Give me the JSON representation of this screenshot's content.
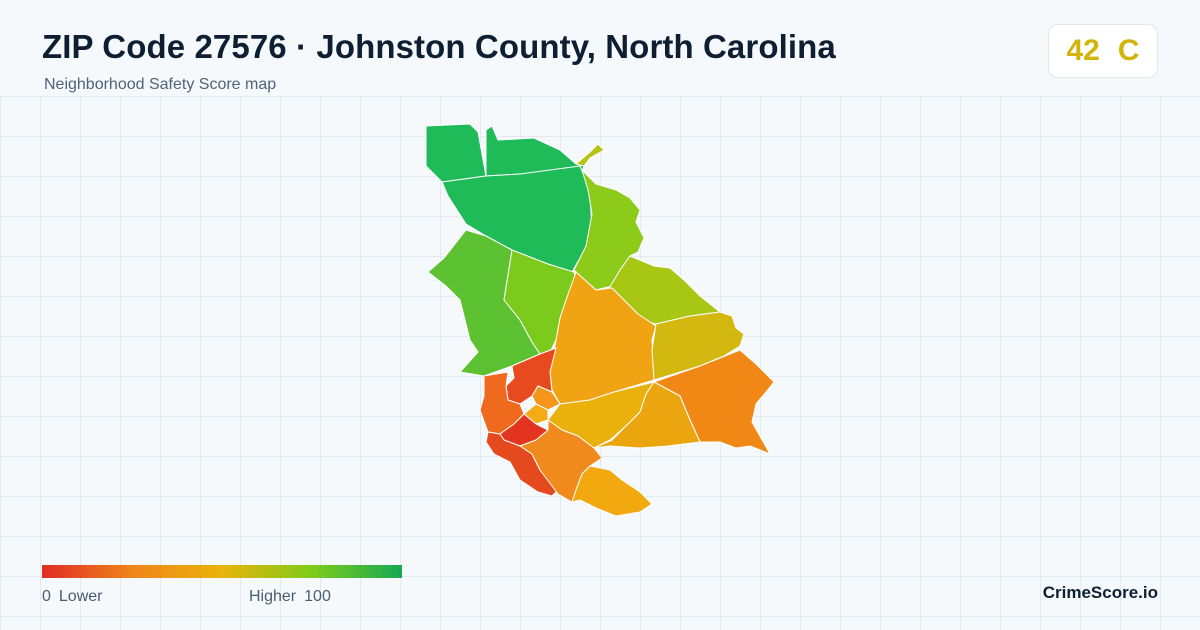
{
  "header": {
    "title": "ZIP Code 27576 · Johnston County, North Carolina",
    "subtitle": "Neighborhood Safety Score map"
  },
  "score": {
    "value": "42",
    "grade": "C",
    "color": "#d4b30a"
  },
  "legend": {
    "min_value": "0",
    "min_label": "Lower",
    "max_label": "Higher",
    "max_value": "100",
    "gradient_colors": [
      "#e02c25",
      "#f0841b",
      "#e8b40c",
      "#7fcb1a",
      "#15a952"
    ]
  },
  "brand": "CrimeScore.io",
  "map": {
    "regions": [
      {
        "name": "north-west",
        "color": "#1fbb58"
      },
      {
        "name": "north-center",
        "color": "#1fbb58"
      },
      {
        "name": "north-large",
        "color": "#1fbb58"
      },
      {
        "name": "north-east-tip",
        "color": "#b5c413"
      },
      {
        "name": "east-upper",
        "color": "#8ccb1a"
      },
      {
        "name": "east-mid",
        "color": "#a8c614"
      },
      {
        "name": "west-mid",
        "color": "#5cc232"
      },
      {
        "name": "center-west",
        "color": "#7ccb1c"
      },
      {
        "name": "center",
        "color": "#f0a413"
      },
      {
        "name": "east-yellow",
        "color": "#d2b80f"
      },
      {
        "name": "south-east",
        "color": "#f18816"
      },
      {
        "name": "south-center-a",
        "color": "#eab10c"
      },
      {
        "name": "south-center-b",
        "color": "#eaa50f"
      },
      {
        "name": "town-red",
        "color": "#e84a20"
      },
      {
        "name": "town-west",
        "color": "#f06a1e"
      },
      {
        "name": "town-core",
        "color": "#e2341f"
      },
      {
        "name": "south-west",
        "color": "#e54a1f"
      },
      {
        "name": "south-orange",
        "color": "#f08a1c"
      },
      {
        "name": "south-tip",
        "color": "#f2a80f"
      },
      {
        "name": "town-small-a",
        "color": "#f4961a"
      },
      {
        "name": "town-small-b",
        "color": "#f4ab16"
      }
    ]
  }
}
